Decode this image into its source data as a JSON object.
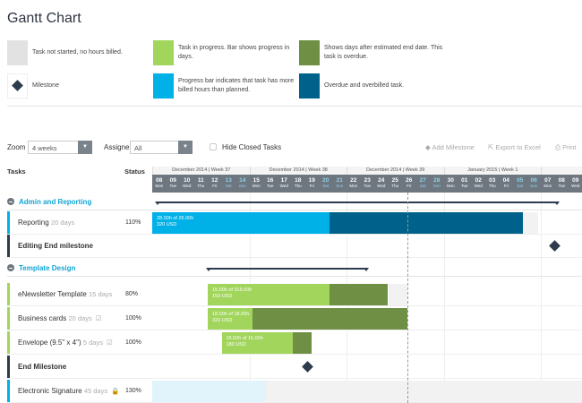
{
  "title": "Gantt Chart",
  "legend": [
    {
      "color": "#e2e2e2",
      "text": "Task not started, no hours billed.",
      "icon": "swatch"
    },
    {
      "color": "#a1d55c",
      "text": "Task in progress. Bar shows progress in days.",
      "icon": "swatch"
    },
    {
      "color": "#6e8f44",
      "text": "Shows days after estimated end date. This task is overdue.",
      "icon": "swatch"
    },
    {
      "color": "#2d3b4c",
      "text": "Milestone",
      "icon": "diamond-icon"
    },
    {
      "color": "#00b1e8",
      "text": "Progress bar indicates that task has more billed hours than planned.",
      "icon": "swatch"
    },
    {
      "color": "#00628a",
      "text": "Overdue and overbilled task.",
      "icon": "swatch"
    }
  ],
  "toolbar": {
    "zoom_label": "Zoom",
    "zoom_value": "4 weeks",
    "assignee_label": "Assigne",
    "assignee_value": "All",
    "hide_closed": "Hide Closed Tasks",
    "add_milestone": "Add Milestone",
    "export": "Export to Excel",
    "print": "Print"
  },
  "columns": {
    "tasks": "Tasks",
    "status": "Status"
  },
  "weeks": [
    "December 2014 | Week 37",
    "December 2014 | Week 38",
    "December 2014 | Week 39",
    "January 2015 | Week 1"
  ],
  "days": [
    [
      "08",
      "Mon"
    ],
    [
      "09",
      "Tue"
    ],
    [
      "10",
      "Wed"
    ],
    [
      "11",
      "Thu"
    ],
    [
      "12",
      "Fri"
    ],
    [
      "13",
      "Sat"
    ],
    [
      "14",
      "Sun"
    ],
    [
      "15",
      "Mon"
    ],
    [
      "16",
      "Tue"
    ],
    [
      "17",
      "Wed"
    ],
    [
      "18",
      "Thu"
    ],
    [
      "19",
      "Fri"
    ],
    [
      "20",
      "Sat"
    ],
    [
      "21",
      "Sun"
    ],
    [
      "22",
      "Mon"
    ],
    [
      "23",
      "Tue"
    ],
    [
      "24",
      "Wed"
    ],
    [
      "25",
      "Thu"
    ],
    [
      "26",
      "Fri"
    ],
    [
      "27",
      "Sat"
    ],
    [
      "28",
      "Sun"
    ],
    [
      "30",
      "Mon"
    ],
    [
      "01",
      "Tue"
    ],
    [
      "02",
      "Wed"
    ],
    [
      "03",
      "Thu"
    ],
    [
      "04",
      "Fri"
    ],
    [
      "05",
      "Sat"
    ],
    [
      "06",
      "Sun"
    ],
    [
      "07",
      "Mon"
    ],
    [
      "08",
      "Tue"
    ],
    [
      "09",
      "Wed"
    ]
  ],
  "today_day": 18.4,
  "groups": [
    {
      "name": "Admin and Reporting",
      "summary": [
        0.3,
        29.2
      ]
    },
    {
      "name": "Template Design",
      "summary": [
        4,
        15.5
      ]
    }
  ],
  "tasks": [
    {
      "name": "Reporting",
      "days": "20 days",
      "status": "110%",
      "accent": "#00b1e8",
      "bar": {
        "start": 0,
        "mid": 12.8,
        "end": 26.7,
        "c1": "#00b1e8",
        "c2": "#00628a",
        "grey_end": 27.8,
        "l1": "28.00h of 26.00h",
        "l2": "320 USD"
      }
    },
    {
      "name": "Editing End milestone",
      "accent": "#2d3b4c",
      "milestone": 29
    },
    {
      "name": "eNewsletter Template",
      "days": "15 days",
      "status": "80%",
      "accent": "#a1d55c",
      "bar": {
        "start": 4,
        "mid": 12.8,
        "end": 17,
        "c1": "#a1d55c",
        "c2": "#6e8f44",
        "grey_end": 18.4,
        "l1": "15.00h of 315.00h",
        "l2": "150 USD"
      }
    },
    {
      "name": "Business cards",
      "days": "20 days",
      "status": "100%",
      "accent": "#a1d55c",
      "icon": "checklist-icon",
      "bar": {
        "start": 4,
        "mid": 7.2,
        "end": 18.4,
        "c1": "#a1d55c",
        "c2": "#6e8f44",
        "l1": "18.00h of 18.00h",
        "l2": "320 USD"
      }
    },
    {
      "name": "Envelope (9.5\" x 4\")",
      "days": "5 days",
      "status": "100%",
      "accent": "#a1d55c",
      "icon": "checklist-icon",
      "bar": {
        "start": 5,
        "mid": 10.1,
        "end": 11.5,
        "c1": "#a1d55c",
        "c2": "#6e8f44",
        "l1": "15.50h of 15.00h",
        "l2": "180 USD"
      }
    },
    {
      "name": "End Milestone",
      "accent": "#2d3b4c",
      "milestone": 11.2
    },
    {
      "name": "Electronic Signature",
      "days": "45 days",
      "status": "130%",
      "accent": "#00b1e8",
      "icon": "lock-icon",
      "bar": {
        "start": 0,
        "mid": 8.2,
        "end": 8.2,
        "c1": "#e1f4fc",
        "c2": "#e1f4fc",
        "grey_end": 31
      }
    }
  ]
}
